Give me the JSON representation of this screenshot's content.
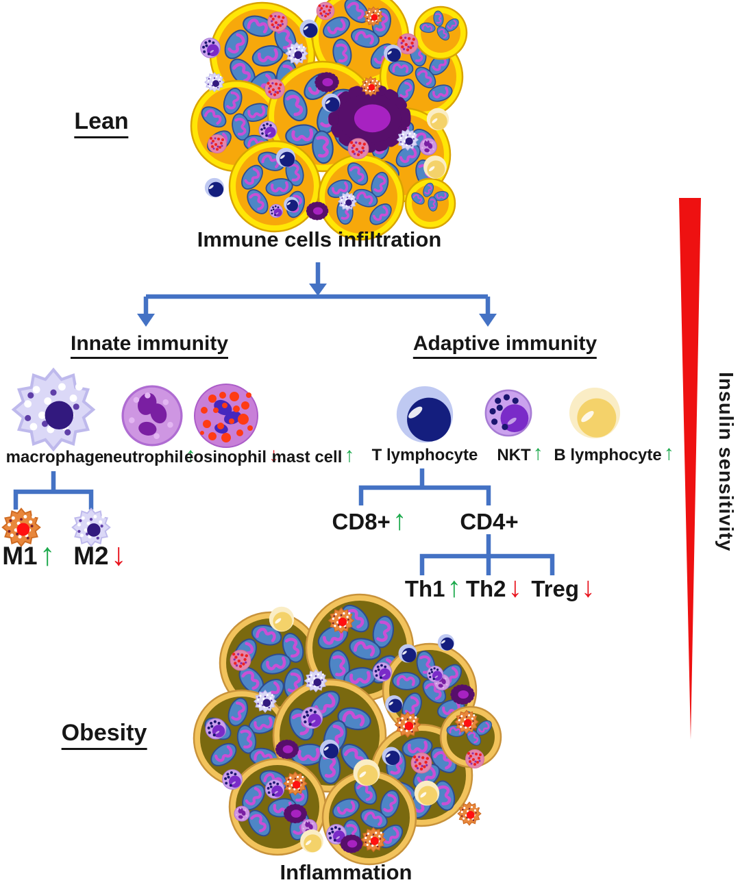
{
  "labels": {
    "lean": "Lean",
    "obesity": "Obesity",
    "infiltration": "Immune cells infiltration",
    "inflammation": "Inflammation",
    "insulin_sensitivity": "Insulin sensitivity"
  },
  "glyphs": {
    "up": "↑",
    "down": "↓"
  },
  "colors": {
    "up_arrow": "#1CA94C",
    "down_arrow": "#E8141E",
    "connector_blue": "#4472C4",
    "wedge_red": "#EE1111"
  },
  "innate": {
    "heading": "Innate immunity",
    "cells": [
      {
        "name": "macrophage",
        "trend": "none"
      },
      {
        "name": "neutrophil",
        "trend": "up"
      },
      {
        "name": "eosinophil",
        "trend": "down"
      },
      {
        "name": "mast cell",
        "trend": "up"
      }
    ],
    "macrophage_subtypes": [
      {
        "name": "M1",
        "trend": "up"
      },
      {
        "name": "M2",
        "trend": "down"
      }
    ]
  },
  "adaptive": {
    "heading": "Adaptive immunity",
    "cells": [
      {
        "name": "T lymphocyte",
        "trend": "none"
      },
      {
        "name": "NKT",
        "trend": "up"
      },
      {
        "name": "B lymphocyte",
        "trend": "up"
      }
    ],
    "t_cell_subsets": [
      {
        "name": "CD8+",
        "trend": "up"
      },
      {
        "name": "CD4+",
        "trend": "none"
      }
    ],
    "cd4_subsets": [
      {
        "name": "Th1",
        "trend": "up"
      },
      {
        "name": "Th2",
        "trend": "down"
      },
      {
        "name": "Treg",
        "trend": "down"
      }
    ]
  }
}
